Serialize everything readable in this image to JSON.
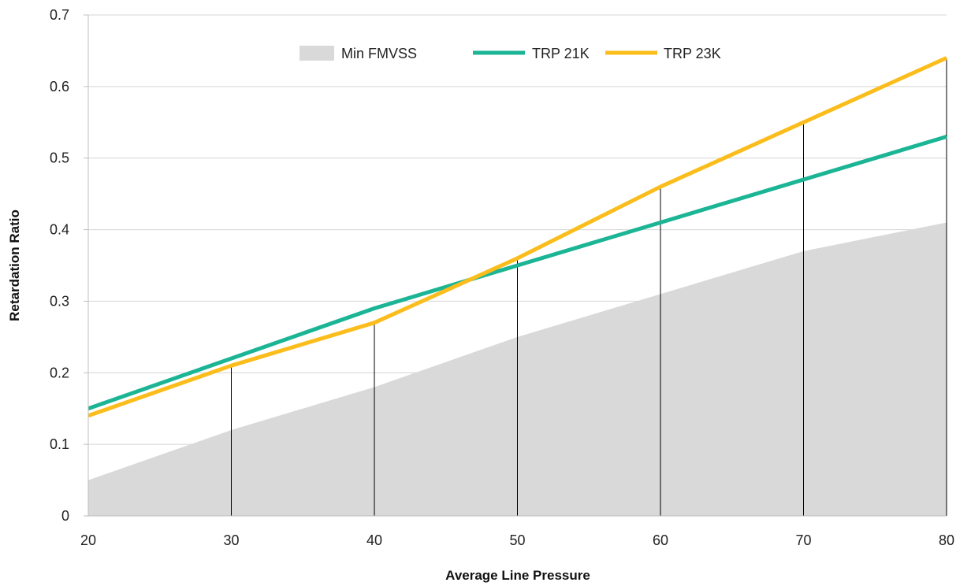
{
  "chart_data": {
    "type": "line",
    "title": "",
    "xlabel": "Average Line Pressure",
    "ylabel": "Retardation Ratio",
    "x": [
      20,
      30,
      40,
      50,
      60,
      70,
      80
    ],
    "xlim": [
      20,
      80
    ],
    "ylim": [
      0,
      0.7
    ],
    "x_ticks": [
      "20",
      "30",
      "40",
      "50",
      "60",
      "70",
      "80"
    ],
    "y_ticks": [
      "0",
      "0.1",
      "0.2",
      "0.3",
      "0.4",
      "0.5",
      "0.6",
      "0.7"
    ],
    "grid": "horizontal",
    "legend": "top-center",
    "series": [
      {
        "name": "Min FMVSS",
        "kind": "area",
        "color": "#d9d9d9",
        "values": [
          0.05,
          0.12,
          0.18,
          0.25,
          0.31,
          0.37,
          0.41
        ]
      },
      {
        "name": "TRP 21K",
        "kind": "line",
        "color": "#1bb595",
        "values": [
          0.15,
          0.22,
          0.29,
          0.35,
          0.41,
          0.47,
          0.53
        ]
      },
      {
        "name": "TRP 23K",
        "kind": "line",
        "color": "#fbbd1c",
        "values": [
          0.14,
          0.21,
          0.27,
          0.36,
          0.46,
          0.55,
          0.64
        ]
      }
    ],
    "drop_lines": {
      "color": "#000000",
      "x": [
        30,
        40,
        50,
        60,
        70,
        80
      ],
      "to_series": "TRP 23K"
    }
  }
}
